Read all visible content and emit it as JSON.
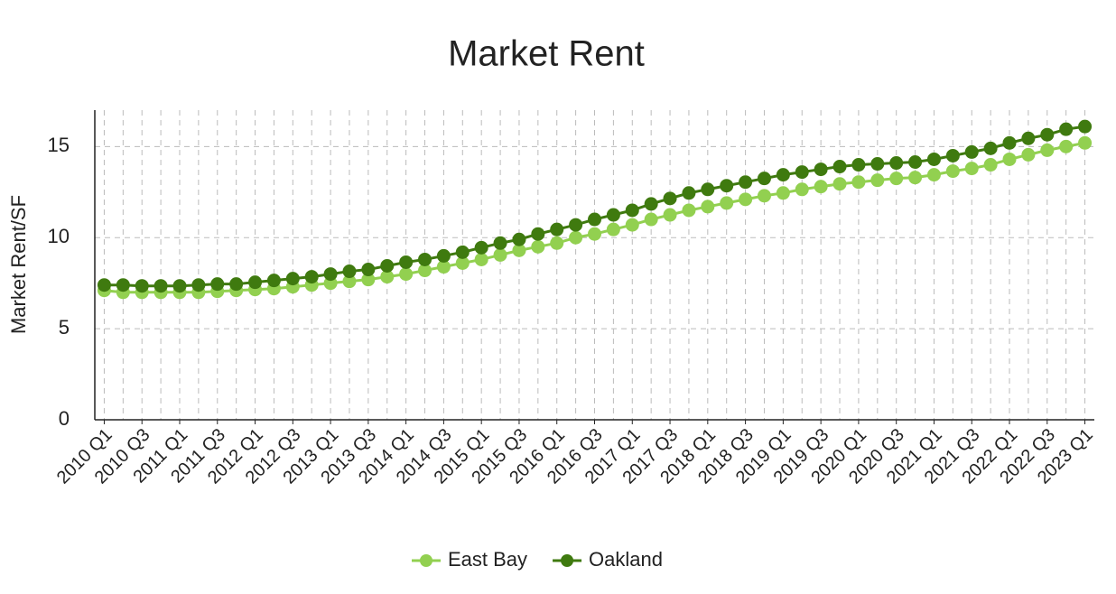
{
  "chart_data": {
    "type": "line",
    "title": "Market Rent",
    "y_label": "Market Rent/SF",
    "categories": [
      "2010 Q1",
      null,
      "2010 Q3",
      null,
      "2011 Q1",
      null,
      "2011 Q3",
      null,
      "2012 Q1",
      null,
      "2012 Q3",
      null,
      "2013 Q1",
      null,
      "2013 Q3",
      null,
      "2014 Q1",
      null,
      "2014 Q3",
      null,
      "2015 Q1",
      null,
      "2015 Q3",
      null,
      "2016 Q1",
      null,
      "2016 Q3",
      null,
      "2017 Q1",
      null,
      "2017 Q3",
      null,
      "2018 Q1",
      null,
      "2018 Q3",
      null,
      "2019 Q1",
      null,
      "2019 Q3",
      null,
      "2020 Q1",
      null,
      "2020 Q3",
      null,
      "2021 Q1",
      null,
      "2021 Q3",
      null,
      "2022 Q1",
      null,
      "2022 Q3",
      null,
      "2023 Q1"
    ],
    "series": [
      {
        "name": "East Bay",
        "color": "#92d050",
        "values": [
          7.1,
          7.0,
          7.0,
          7.0,
          7.0,
          7.0,
          7.05,
          7.1,
          7.15,
          7.2,
          7.3,
          7.4,
          7.5,
          7.6,
          7.7,
          7.85,
          8.0,
          8.2,
          8.4,
          8.6,
          8.8,
          9.05,
          9.3,
          9.5,
          9.7,
          10.0,
          10.2,
          10.45,
          10.7,
          11.0,
          11.25,
          11.5,
          11.7,
          11.9,
          12.1,
          12.3,
          12.45,
          12.65,
          12.8,
          12.95,
          13.05,
          13.15,
          13.25,
          13.3,
          13.45,
          13.65,
          13.8,
          14.0,
          14.3,
          14.55,
          14.8,
          15.0,
          15.2
        ]
      },
      {
        "name": "Oakland",
        "color": "#3f7a0f",
        "values": [
          7.4,
          7.4,
          7.35,
          7.35,
          7.35,
          7.4,
          7.45,
          7.45,
          7.55,
          7.65,
          7.75,
          7.85,
          8.0,
          8.15,
          8.25,
          8.45,
          8.65,
          8.8,
          9.0,
          9.2,
          9.45,
          9.7,
          9.9,
          10.2,
          10.45,
          10.7,
          11.0,
          11.25,
          11.5,
          11.85,
          12.15,
          12.45,
          12.65,
          12.85,
          13.05,
          13.25,
          13.45,
          13.6,
          13.75,
          13.9,
          14.0,
          14.05,
          14.1,
          14.15,
          14.3,
          14.5,
          14.7,
          14.9,
          15.2,
          15.45,
          15.65,
          15.95,
          16.1
        ]
      }
    ],
    "ylim": [
      0,
      17
    ],
    "yticks": [
      0,
      5,
      10,
      15
    ],
    "grid": true,
    "legend": "bottom"
  }
}
